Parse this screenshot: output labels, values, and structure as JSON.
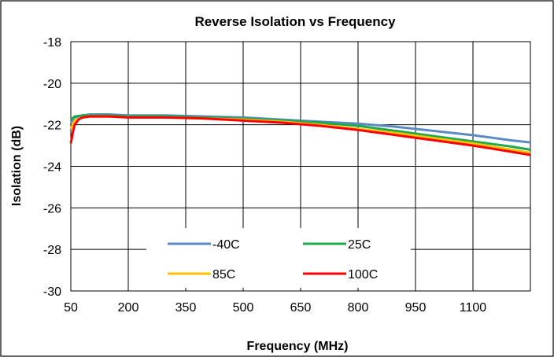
{
  "chart_data": {
    "type": "line",
    "title": "Reverse Isolation vs Frequency",
    "xlabel": "Frequency (MHz)",
    "ylabel": "Isolation (dB)",
    "xlim": [
      50,
      1250
    ],
    "ylim": [
      -30,
      -18
    ],
    "xticks": [
      50,
      200,
      350,
      500,
      650,
      800,
      950,
      1100
    ],
    "yticks": [
      -30,
      -28,
      -26,
      -24,
      -22,
      -20,
      -18
    ],
    "grid": true,
    "legend_position": "lower-center",
    "series": [
      {
        "name": "-40C",
        "color": "#5b8ac4",
        "points": [
          [
            50,
            -21.9
          ],
          [
            60,
            -21.65
          ],
          [
            80,
            -21.55
          ],
          [
            100,
            -21.5
          ],
          [
            150,
            -21.5
          ],
          [
            200,
            -21.55
          ],
          [
            300,
            -21.55
          ],
          [
            400,
            -21.6
          ],
          [
            500,
            -21.65
          ],
          [
            600,
            -21.75
          ],
          [
            700,
            -21.85
          ],
          [
            800,
            -21.95
          ],
          [
            900,
            -22.1
          ],
          [
            1000,
            -22.3
          ],
          [
            1100,
            -22.5
          ],
          [
            1200,
            -22.75
          ],
          [
            1250,
            -22.85
          ]
        ]
      },
      {
        "name": "25C",
        "color": "#1ea94c",
        "points": [
          [
            50,
            -21.75
          ],
          [
            60,
            -21.6
          ],
          [
            80,
            -21.55
          ],
          [
            100,
            -21.55
          ],
          [
            150,
            -21.55
          ],
          [
            200,
            -21.6
          ],
          [
            300,
            -21.6
          ],
          [
            400,
            -21.65
          ],
          [
            500,
            -21.7
          ],
          [
            600,
            -21.8
          ],
          [
            700,
            -21.9
          ],
          [
            800,
            -22.05
          ],
          [
            900,
            -22.3
          ],
          [
            1000,
            -22.55
          ],
          [
            1100,
            -22.8
          ],
          [
            1200,
            -23.05
          ],
          [
            1250,
            -23.2
          ]
        ]
      },
      {
        "name": "85C",
        "color": "#ffc000",
        "points": [
          [
            50,
            -22.2
          ],
          [
            60,
            -21.8
          ],
          [
            80,
            -21.65
          ],
          [
            100,
            -21.6
          ],
          [
            150,
            -21.6
          ],
          [
            200,
            -21.65
          ],
          [
            300,
            -21.65
          ],
          [
            400,
            -21.7
          ],
          [
            500,
            -21.75
          ],
          [
            600,
            -21.85
          ],
          [
            700,
            -22.0
          ],
          [
            800,
            -22.2
          ],
          [
            900,
            -22.4
          ],
          [
            1000,
            -22.65
          ],
          [
            1100,
            -22.9
          ],
          [
            1200,
            -23.2
          ],
          [
            1250,
            -23.35
          ]
        ]
      },
      {
        "name": "100C",
        "color": "#ff0000",
        "points": [
          [
            50,
            -22.9
          ],
          [
            55,
            -22.4
          ],
          [
            60,
            -22.0
          ],
          [
            70,
            -21.75
          ],
          [
            80,
            -21.65
          ],
          [
            100,
            -21.6
          ],
          [
            150,
            -21.6
          ],
          [
            200,
            -21.65
          ],
          [
            300,
            -21.65
          ],
          [
            400,
            -21.7
          ],
          [
            500,
            -21.8
          ],
          [
            600,
            -21.9
          ],
          [
            700,
            -22.05
          ],
          [
            800,
            -22.25
          ],
          [
            900,
            -22.5
          ],
          [
            1000,
            -22.75
          ],
          [
            1100,
            -23.0
          ],
          [
            1200,
            -23.3
          ],
          [
            1250,
            -23.45
          ]
        ]
      }
    ]
  }
}
